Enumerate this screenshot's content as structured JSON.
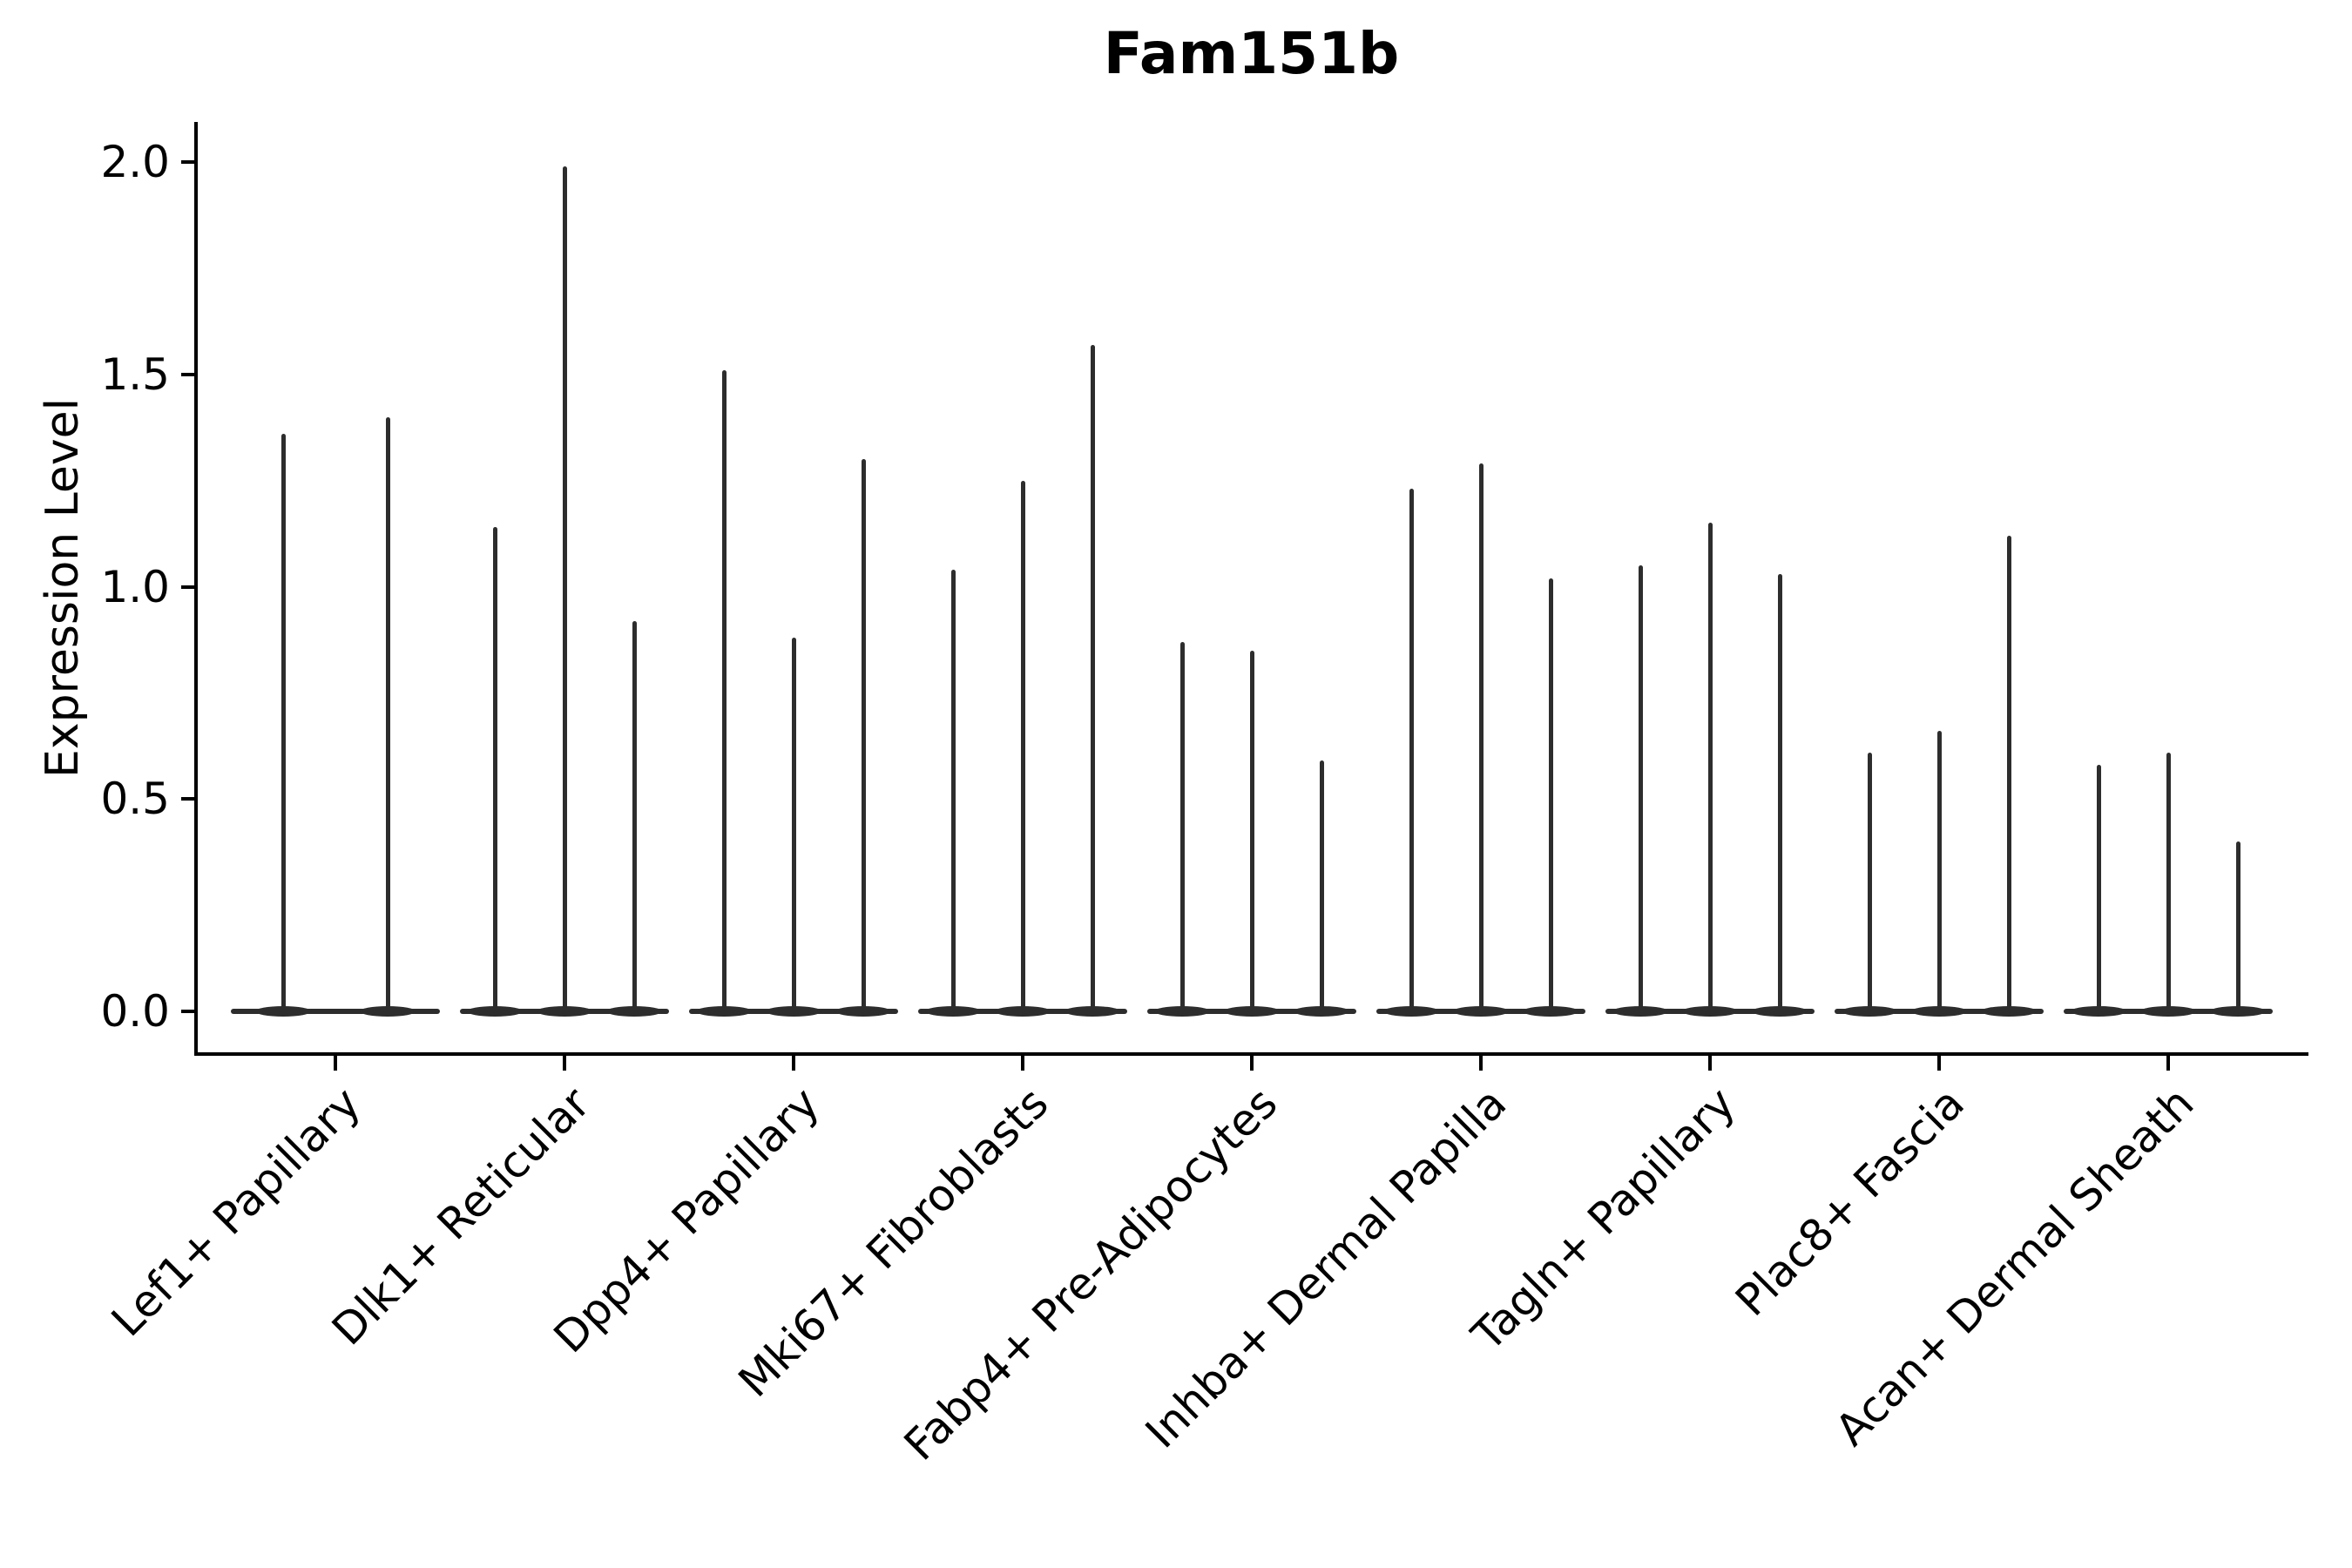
{
  "chart_data": {
    "type": "violin",
    "title": "Fam151b",
    "ylabel": "Expression Level",
    "xlabel": "",
    "categories": [
      "Lef1+ Papillary",
      "Dlk1+ Reticular",
      "Dpp4+ Papillary",
      "Mki67+ Fibroblasts",
      "Fabp4+ Pre-Adipocytes",
      "Inhba+ Dermal Papilla",
      "Tagln+ Papillary",
      "Plac8+ Fascia",
      "Acan+ Dermal Sheath"
    ],
    "violins_per_category": [
      2,
      3,
      3,
      3,
      3,
      3,
      3,
      3,
      3
    ],
    "values": [
      [
        1.36,
        1.4
      ],
      [
        1.14,
        1.99,
        0.92
      ],
      [
        1.51,
        0.88,
        1.3
      ],
      [
        1.04,
        1.25,
        1.57
      ],
      [
        0.87,
        0.85,
        0.59
      ],
      [
        1.23,
        1.29,
        1.02
      ],
      [
        1.05,
        1.15,
        1.03
      ],
      [
        0.61,
        0.66,
        1.12
      ],
      [
        0.58,
        0.61,
        0.4
      ]
    ],
    "baseline_value": 0.0,
    "yticks": [
      0,
      0.5,
      1.0,
      1.5,
      2.0
    ],
    "ytick_labels": [
      "0.0",
      "0.5",
      "1.0",
      "1.5",
      "2.0"
    ],
    "ylim": [
      -0.1,
      2.09
    ],
    "grid": false,
    "legend": "none",
    "xtick_rotation_deg": 45,
    "colors": {
      "violin_stroke": "#2d2d2d",
      "axis": "#000000",
      "text": "#000000",
      "background": "#ffffff"
    }
  }
}
